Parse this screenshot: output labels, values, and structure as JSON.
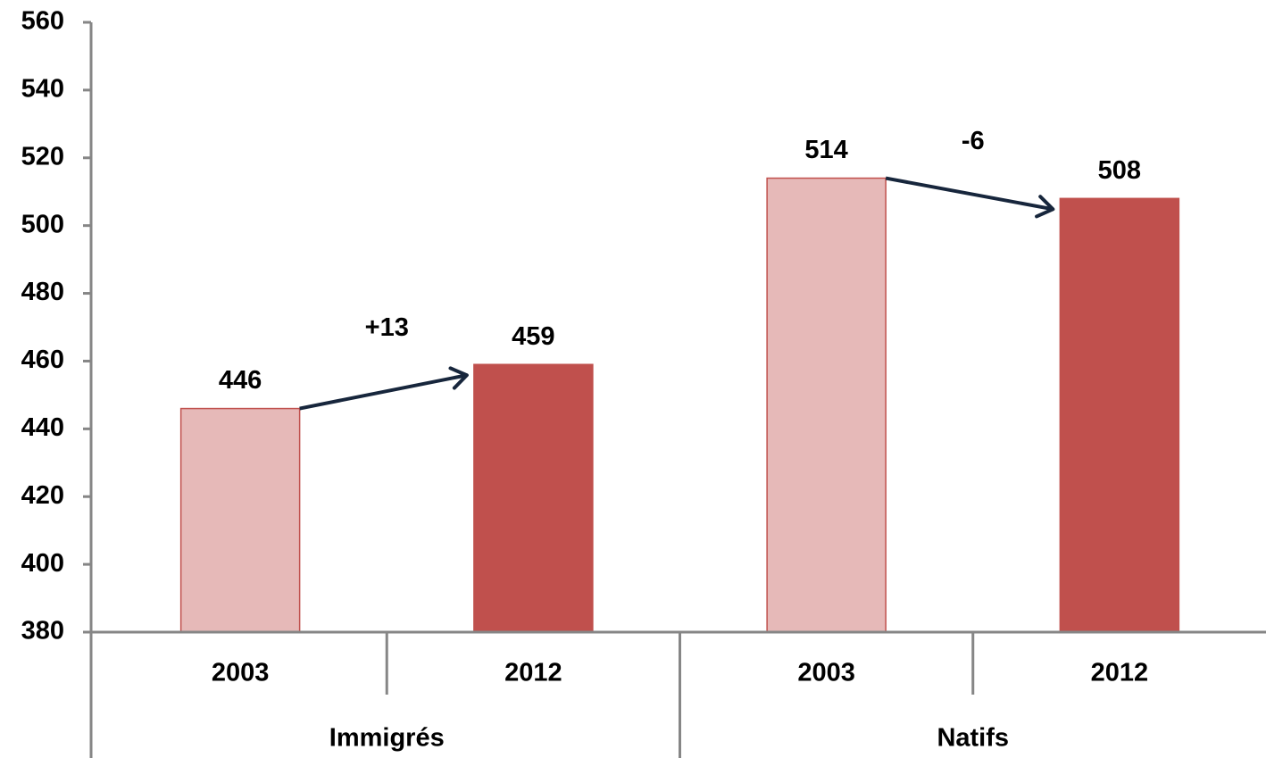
{
  "chart_data": {
    "type": "bar",
    "categories": [
      "2003",
      "2012",
      "2003",
      "2012"
    ],
    "groups": [
      "Immigrés",
      "Natifs"
    ],
    "values": [
      446,
      459,
      514,
      508
    ],
    "colors": [
      "#e6b9b8",
      "#c0504d",
      "#e6b9b8",
      "#c0504d"
    ],
    "annotations": [
      "+13",
      "-6"
    ],
    "ylim": [
      380,
      560
    ],
    "yticks": [
      380,
      400,
      420,
      440,
      460,
      480,
      500,
      520,
      540,
      560
    ],
    "grid": false
  }
}
